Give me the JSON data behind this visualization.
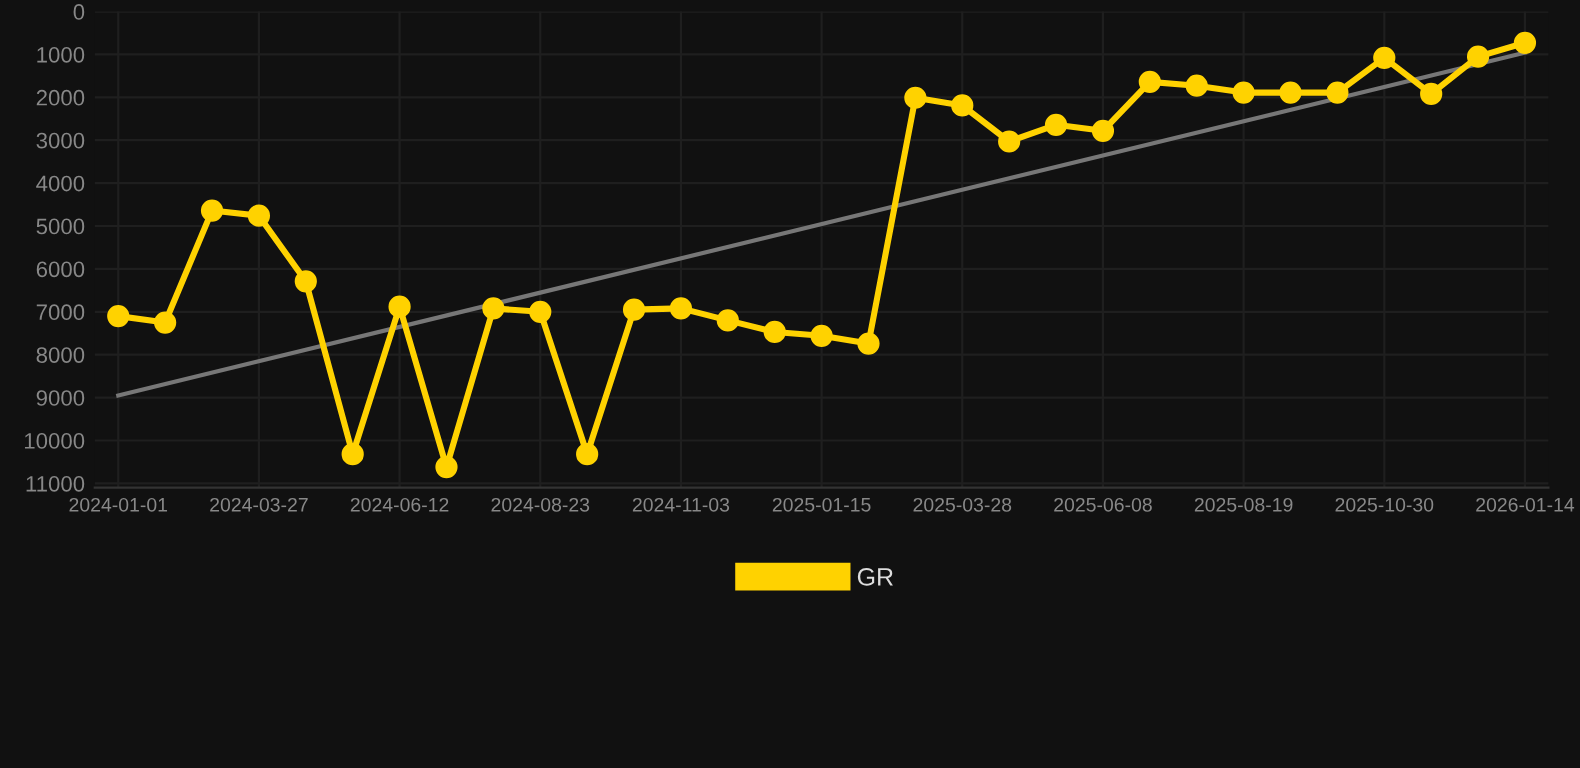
{
  "chart_data": {
    "type": "line",
    "categories": [
      "2024-01-01",
      null,
      null,
      "2024-03-27",
      null,
      null,
      "2024-06-12",
      null,
      null,
      "2024-08-23",
      null,
      null,
      "2024-11-03",
      null,
      null,
      "2025-01-15",
      null,
      null,
      "2025-03-28",
      null,
      null,
      "2025-06-08",
      null,
      null,
      "2025-08-19",
      null,
      null,
      "2025-10-30",
      null,
      null,
      "2026-01-14"
    ],
    "series": [
      {
        "name": "GR",
        "color": "#ffd200",
        "marker": "circle",
        "values": [
          7100,
          7250,
          4640,
          4760,
          6290,
          10320,
          6880,
          10620,
          6920,
          7000,
          10320,
          6950,
          6920,
          7200,
          7470,
          7560,
          7740,
          2010,
          2190,
          3030,
          2640,
          2780,
          1640,
          1730,
          1890,
          1890,
          1890,
          1080,
          1920,
          1050,
          730
        ]
      },
      {
        "type": "line",
        "color": "#777777",
        "marker": "none",
        "values": [
          8950,
          null,
          null,
          null,
          null,
          null,
          null,
          null,
          null,
          null,
          null,
          null,
          null,
          null,
          null,
          null,
          null,
          null,
          null,
          null,
          null,
          null,
          null,
          null,
          null,
          null,
          null,
          null,
          null,
          null,
          960
        ]
      }
    ],
    "ylim": [
      11100,
      0
    ],
    "yticks": [
      0,
      1000,
      2000,
      3000,
      4000,
      5000,
      6000,
      7000,
      8000,
      9000,
      10000,
      11000
    ],
    "grid": true,
    "legend": "bottom"
  }
}
